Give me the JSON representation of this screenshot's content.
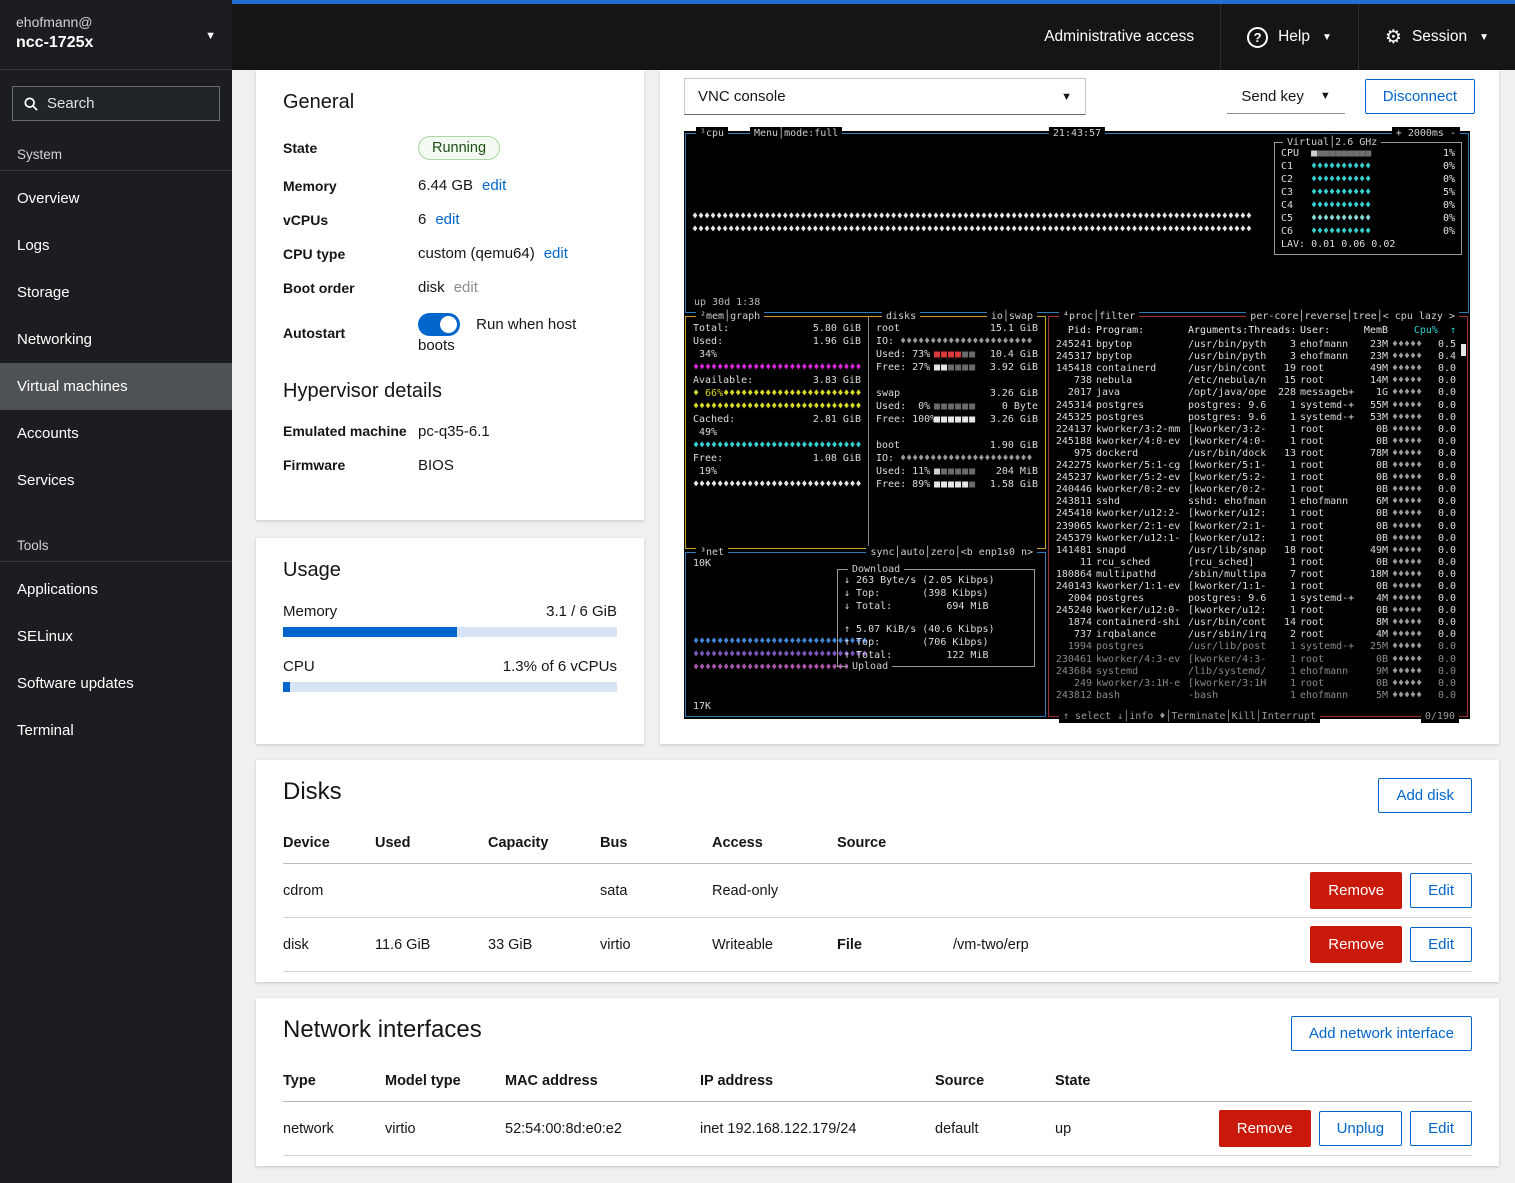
{
  "sidebar": {
    "user": "ehofmann@",
    "host": "ncc-1725x",
    "search_placeholder": "Search",
    "system_label": "System",
    "tools_label": "Tools",
    "items": [
      {
        "label": "Overview",
        "active": false
      },
      {
        "label": "Logs",
        "active": false
      },
      {
        "label": "Storage",
        "active": false
      },
      {
        "label": "Networking",
        "active": false
      },
      {
        "label": "Virtual machines",
        "active": true
      },
      {
        "label": "Accounts",
        "active": false
      },
      {
        "label": "Services",
        "active": false
      }
    ],
    "tools": [
      {
        "label": "Applications"
      },
      {
        "label": "SELinux"
      },
      {
        "label": "Software updates"
      },
      {
        "label": "Terminal"
      }
    ]
  },
  "masthead": {
    "admin_access": "Administrative access",
    "help": "Help",
    "session": "Session"
  },
  "general": {
    "title": "General",
    "state": {
      "label": "State",
      "value": "Running"
    },
    "memory": {
      "label": "Memory",
      "value": "6.44 GB",
      "edit": "edit"
    },
    "vcpus": {
      "label": "vCPUs",
      "value": "6",
      "edit": "edit"
    },
    "cpu_type": {
      "label": "CPU type",
      "value": "custom (qemu64)",
      "edit": "edit"
    },
    "boot_order": {
      "label": "Boot order",
      "value": "disk",
      "edit": "edit"
    },
    "autostart": {
      "label": "Autostart",
      "value": "Run when host boots"
    },
    "hypervisor_title": "Hypervisor details",
    "emulated_machine": {
      "label": "Emulated machine",
      "value": "pc-q35-6.1"
    },
    "firmware": {
      "label": "Firmware",
      "value": "BIOS"
    }
  },
  "usage": {
    "title": "Usage",
    "memory": {
      "label": "Memory",
      "value": "3.1 / 6 GiB",
      "pct": 52
    },
    "cpu": {
      "label": "CPU",
      "value": "1.3% of 6 vCPUs",
      "pct": 2
    }
  },
  "console": {
    "select_value": "VNC console",
    "send_key": "Send key",
    "disconnect": "Disconnect"
  },
  "terminal": {
    "cpu_box": {
      "title": "¹cpu",
      "menu": "Menu│mode:full",
      "clock": "21:43:57",
      "interval": "+ 2000ms -",
      "uptime": "up 30d 1:38",
      "graph_rows": [
        {
          "char": "♦",
          "count": 104,
          "color": "#e6e6e6"
        },
        {
          "char": "♦",
          "count": 104,
          "color": "#e6e6e6"
        }
      ],
      "stats": {
        "title": "Virtual│2.6 GHz",
        "rows": [
          {
            "label": "CPU",
            "blocks": {
              "on": 1,
              "total": 10,
              "on_color": "#cfcfcf",
              "off_color": "#707070"
            },
            "pct": "1%"
          },
          {
            "label": "C1",
            "graph": {
              "char": "♦",
              "count": 10,
              "color": "#35d0d0"
            },
            "pct": "0%"
          },
          {
            "label": "C2",
            "graph": {
              "char": "♦",
              "count": 10,
              "color": "#35d0d0"
            },
            "pct": "0%"
          },
          {
            "label": "C3",
            "graph": {
              "char": "♦",
              "count": 10,
              "color": "#35d0d0"
            },
            "pct": "5%"
          },
          {
            "label": "C4",
            "graph": {
              "char": "♦",
              "count": 10,
              "color": "#35d0d0"
            },
            "pct": "0%"
          },
          {
            "label": "C5",
            "graph": {
              "char": "♦",
              "count": 10,
              "color": "#8adada"
            },
            "pct": "0%"
          },
          {
            "label": "C6",
            "graph": {
              "char": "♦",
              "count": 10,
              "color": "#35d0d0"
            },
            "pct": "0%"
          }
        ],
        "load_avg": "LAV: 0.01 0.06 0.02"
      }
    },
    "mem_box": {
      "title": "²mem│graph",
      "lines": [
        {
          "label": "Total:",
          "value": "5.80 GiB"
        },
        {
          "label": "Used:",
          "value": "1.96 GiB"
        },
        {
          "text": " 34%"
        },
        {
          "graph": {
            "char": "♦",
            "count": 29,
            "color": "#d826d8"
          }
        },
        {
          "label": "Available:",
          "value": "3.83 GiB"
        },
        {
          "text": "♦ 66%",
          "text_color": "#d8d826",
          "graph": {
            "char": "♦",
            "count": 23,
            "color": "#d8d826"
          }
        },
        {
          "graph": {
            "char": "♦",
            "count": 29,
            "color": "#d8d826"
          }
        },
        {
          "label": "Cached:",
          "value": "2.81 GiB"
        },
        {
          "text": " 49%"
        },
        {
          "graph": {
            "char": "♦",
            "count": 29,
            "color": "#35d0d0"
          }
        },
        {
          "label": "Free:",
          "value": "1.08 GiB"
        },
        {
          "text": " 19%"
        },
        {
          "graph": {
            "char": "♦",
            "count": 29,
            "color": "#e6e6e6"
          }
        }
      ]
    },
    "disks_box": {
      "title": "disks",
      "title_right": "io│swap",
      "sections": [
        {
          "name": "root",
          "size": "15.1 GiB",
          "io": {
            "char": "♦",
            "count": 22,
            "color": "#9a9a9a"
          },
          "meters": [
            {
              "label": "Used:",
              "pct": "73%",
              "blocks": {
                "on": 4,
                "total": 6,
                "on_color": "#d83a3a",
                "off_color": "#6a6a6a"
              },
              "value": "10.4 GiB"
            },
            {
              "label": "Free:",
              "pct": "27%",
              "blocks": {
                "on": 2,
                "total": 6,
                "on_color": "#e6e6e6",
                "off_color": "#6a6a6a"
              },
              "value": "3.92 GiB"
            }
          ]
        },
        {
          "name": "swap",
          "size": "3.26 GiB",
          "meters": [
            {
              "label": "Used:",
              "pct": " 0%",
              "blocks": {
                "on": 0,
                "total": 6,
                "on_color": "#e6e6e6",
                "off_color": "#6a6a6a"
              },
              "value": "0 Byte"
            },
            {
              "label": "Free:",
              "pct": "100%",
              "blocks": {
                "on": 6,
                "total": 6,
                "on_color": "#e6e6e6",
                "off_color": "#6a6a6a"
              },
              "value": "3.26 GiB"
            }
          ]
        },
        {
          "name": "boot",
          "size": "1.90 GiB",
          "io": {
            "char": "♦",
            "count": 22,
            "color": "#9a9a9a"
          },
          "meters": [
            {
              "label": "Used:",
              "pct": "11%",
              "blocks": {
                "on": 1,
                "total": 6,
                "on_color": "#cfcfcf",
                "off_color": "#6a6a6a"
              },
              "value": "204 MiB"
            },
            {
              "label": "Free:",
              "pct": "89%",
              "blocks": {
                "on": 5,
                "total": 6,
                "on_color": "#e6e6e6",
                "off_color": "#6a6a6a"
              },
              "value": "1.58 GiB"
            }
          ]
        }
      ]
    },
    "net_box": {
      "title": "³net",
      "title_right": "sync│auto│zero│<b enp1s0 n>",
      "scale_top": "10K",
      "scale_bottom": "17K",
      "graph_rows": [
        {
          "char": "♦",
          "count": 29,
          "color": "#3f86d8"
        },
        {
          "char": "♦",
          "count": 29,
          "color": "#7d55b8"
        },
        {
          "char": "♦",
          "count": 29,
          "color": "#a855a8"
        }
      ],
      "info": {
        "top_title": "Download",
        "bottom_title": "Upload",
        "down_lines": [
          "↓ 263 Byte/s (2.05 Kibps)",
          "↓ Top:       (398 Kibps)",
          "↓ Total:         694 MiB"
        ],
        "up_lines": [
          "↑ 5.07 KiB/s (40.6 Kibps)",
          "↑ Top:       (706 Kibps)",
          "↑ Total:         122 MiB"
        ]
      }
    },
    "proc_box": {
      "title": "⁴proc│filter",
      "title_right": "per-core│reverse│tree│< cpu lazy >",
      "columns": {
        "pid": "Pid:",
        "program": "Program:",
        "args_threads": "Arguments:Threads:",
        "user": "User:",
        "mem": "MemB",
        "cpu": "Cpu%  ↑"
      },
      "footer": "↑ select ↓│info ♦│Terminate│Kill│Interrupt",
      "footer_right": "0/190",
      "rows": [
        {
          "pid": "245241",
          "program": "bpytop",
          "args": "/usr/bin/pyth",
          "threads": "3",
          "user": "ehofmann",
          "mem": "23M",
          "cpu": "0.5",
          "dim": false
        },
        {
          "pid": "245317",
          "program": "bpytop",
          "args": "/usr/bin/pyth",
          "threads": "3",
          "user": "ehofmann",
          "mem": "23M",
          "cpu": "0.4",
          "dim": false
        },
        {
          "pid": "145418",
          "program": "containerd",
          "args": "/usr/bin/cont",
          "threads": "19",
          "user": "root",
          "mem": "49M",
          "cpu": "0.0",
          "dim": false
        },
        {
          "pid": "738",
          "program": "nebula",
          "args": "/etc/nebula/n",
          "threads": "15",
          "user": "root",
          "mem": "14M",
          "cpu": "0.0",
          "dim": false
        },
        {
          "pid": "2017",
          "program": "java",
          "args": "/opt/java/ope",
          "threads": "228",
          "user": "messageb+",
          "mem": "1G",
          "cpu": "0.0",
          "dim": false
        },
        {
          "pid": "245314",
          "program": "postgres",
          "args": "postgres: 9.6",
          "threads": "1",
          "user": "systemd-+",
          "mem": "55M",
          "cpu": "0.0",
          "dim": false
        },
        {
          "pid": "245325",
          "program": "postgres",
          "args": "postgres: 9.6",
          "threads": "1",
          "user": "systemd-+",
          "mem": "53M",
          "cpu": "0.0",
          "dim": false
        },
        {
          "pid": "224137",
          "program": "kworker/3:2-mm",
          "args": "[kworker/3:2-",
          "threads": "1",
          "user": "root",
          "mem": "0B",
          "cpu": "0.0",
          "dim": false
        },
        {
          "pid": "245188",
          "program": "kworker/4:0-ev",
          "args": "[kworker/4:0-",
          "threads": "1",
          "user": "root",
          "mem": "0B",
          "cpu": "0.0",
          "dim": false
        },
        {
          "pid": "975",
          "program": "dockerd",
          "args": "/usr/bin/dock",
          "threads": "13",
          "user": "root",
          "mem": "78M",
          "cpu": "0.0",
          "dim": false
        },
        {
          "pid": "242275",
          "program": "kworker/5:1-cg",
          "args": "[kworker/5:1-",
          "threads": "1",
          "user": "root",
          "mem": "0B",
          "cpu": "0.0",
          "dim": false
        },
        {
          "pid": "245237",
          "program": "kworker/5:2-ev",
          "args": "[kworker/5:2-",
          "threads": "1",
          "user": "root",
          "mem": "0B",
          "cpu": "0.0",
          "dim": false
        },
        {
          "pid": "240446",
          "program": "kworker/0:2-ev",
          "args": "[kworker/0:2-",
          "threads": "1",
          "user": "root",
          "mem": "0B",
          "cpu": "0.0",
          "dim": false
        },
        {
          "pid": "243811",
          "program": "sshd",
          "args": "sshd: ehofman",
          "threads": "1",
          "user": "ehofmann",
          "mem": "6M",
          "cpu": "0.0",
          "dim": false
        },
        {
          "pid": "245410",
          "program": "kworker/u12:2-",
          "args": "[kworker/u12:",
          "threads": "1",
          "user": "root",
          "mem": "0B",
          "cpu": "0.0",
          "dim": false
        },
        {
          "pid": "239065",
          "program": "kworker/2:1-ev",
          "args": "[kworker/2:1-",
          "threads": "1",
          "user": "root",
          "mem": "0B",
          "cpu": "0.0",
          "dim": false
        },
        {
          "pid": "245379",
          "program": "kworker/u12:1-",
          "args": "[kworker/u12:",
          "threads": "1",
          "user": "root",
          "mem": "0B",
          "cpu": "0.0",
          "dim": false
        },
        {
          "pid": "141481",
          "program": "snapd",
          "args": "/usr/lib/snap",
          "threads": "18",
          "user": "root",
          "mem": "49M",
          "cpu": "0.0",
          "dim": false
        },
        {
          "pid": "11",
          "program": "rcu_sched",
          "args": "[rcu_sched]",
          "threads": "1",
          "user": "root",
          "mem": "0B",
          "cpu": "0.0",
          "dim": false
        },
        {
          "pid": "180864",
          "program": "multipathd",
          "args": "/sbin/multipa",
          "threads": "7",
          "user": "root",
          "mem": "18M",
          "cpu": "0.0",
          "dim": false
        },
        {
          "pid": "240143",
          "program": "kworker/1:1-ev",
          "args": "[kworker/1:1-",
          "threads": "1",
          "user": "root",
          "mem": "0B",
          "cpu": "0.0",
          "dim": false
        },
        {
          "pid": "2004",
          "program": "postgres",
          "args": "postgres: 9.6",
          "threads": "1",
          "user": "systemd-+",
          "mem": "4M",
          "cpu": "0.0",
          "dim": false
        },
        {
          "pid": "245240",
          "program": "kworker/u12:0-",
          "args": "[kworker/u12:",
          "threads": "1",
          "user": "root",
          "mem": "0B",
          "cpu": "0.0",
          "dim": false
        },
        {
          "pid": "1874",
          "program": "containerd-shi",
          "args": "/usr/bin/cont",
          "threads": "14",
          "user": "root",
          "mem": "8M",
          "cpu": "0.0",
          "dim": false
        },
        {
          "pid": "737",
          "program": "irqbalance",
          "args": "/usr/sbin/irq",
          "threads": "2",
          "user": "root",
          "mem": "4M",
          "cpu": "0.0",
          "dim": false
        },
        {
          "pid": "1994",
          "program": "postgres",
          "args": "/usr/lib/post",
          "threads": "1",
          "user": "systemd-+",
          "mem": "25M",
          "cpu": "0.0",
          "dim": true
        },
        {
          "pid": "230461",
          "program": "kworker/4:3-ev",
          "args": "[kworker/4:3-",
          "threads": "1",
          "user": "root",
          "mem": "0B",
          "cpu": "0.0",
          "dim": true
        },
        {
          "pid": "243684",
          "program": "systemd",
          "args": "/lib/systemd/",
          "threads": "1",
          "user": "ehofmann",
          "mem": "9M",
          "cpu": "0.0",
          "dim": true
        },
        {
          "pid": "249",
          "program": "kworker/3:1H-e",
          "args": "[kworker/3:1H",
          "threads": "1",
          "user": "root",
          "mem": "0B",
          "cpu": "0.0",
          "dim": true
        },
        {
          "pid": "243812",
          "program": "bash",
          "args": "-bash",
          "threads": "1",
          "user": "ehofmann",
          "mem": "5M",
          "cpu": "0.0",
          "dim": true
        }
      ]
    }
  },
  "disks": {
    "title": "Disks",
    "add_button": "Add disk",
    "headers": [
      "Device",
      "Used",
      "Capacity",
      "Bus",
      "Access",
      "Source"
    ],
    "remove_label": "Remove",
    "edit_label": "Edit",
    "rows": [
      {
        "device": "cdrom",
        "used": "",
        "capacity": "",
        "bus": "sata",
        "access": "Read-only",
        "source_label": "",
        "source": ""
      },
      {
        "device": "disk",
        "used": "11.6 GiB",
        "capacity": "33 GiB",
        "bus": "virtio",
        "access": "Writeable",
        "source_label": "File",
        "source": "/vm-two/erp"
      }
    ]
  },
  "networks": {
    "title": "Network interfaces",
    "add_button": "Add network interface",
    "headers": [
      "Type",
      "Model type",
      "MAC address",
      "IP address",
      "Source",
      "State"
    ],
    "remove_label": "Remove",
    "unplug_label": "Unplug",
    "edit_label": "Edit",
    "rows": [
      {
        "type": "network",
        "model": "virtio",
        "mac": "52:54:00:8d:e0:e2",
        "ip": "inet 192.168.122.179/24",
        "source": "default",
        "state": "up"
      }
    ]
  }
}
